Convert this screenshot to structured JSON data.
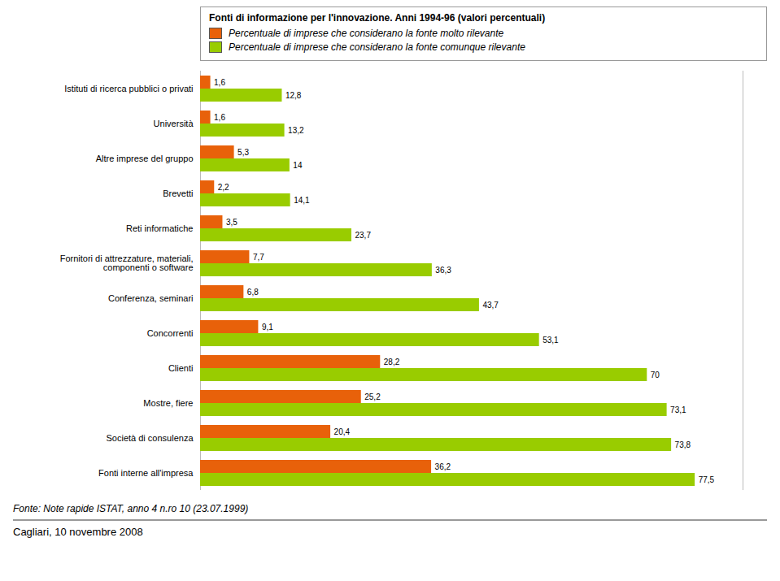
{
  "chart_data": {
    "type": "bar",
    "orientation": "horizontal",
    "title": "Fonti di informazione per l'innovazione. Anni 1994-96 (valori percentuali)",
    "categories": [
      "Istituti di ricerca pubblici o privati",
      "Università",
      "Altre imprese del gruppo",
      "Brevetti",
      "Reti informatiche",
      "Fornitori di attrezzature, materiali,\ncomponenti o software",
      "Conferenza, seminari",
      "Concorrenti",
      "Clienti",
      "Mostre, fiere",
      "Società di consulenza",
      "Fonti interne all'impresa"
    ],
    "series": [
      {
        "name": "Percentuale di imprese che considerano la fonte molto rilevante",
        "color": "#E8610A",
        "values": [
          1.6,
          1.6,
          5.3,
          2.2,
          3.5,
          7.7,
          6.8,
          9.1,
          28.2,
          25.2,
          20.4,
          36.2
        ],
        "value_labels": [
          "1,6",
          "1,6",
          "5,3",
          "2,2",
          "3,5",
          "7,7",
          "6,8",
          "9,1",
          "28,2",
          "25,2",
          "20,4",
          "36,2"
        ]
      },
      {
        "name": "Percentuale di imprese che considerano la fonte comunque rilevante",
        "color": "#99CC00",
        "values": [
          12.8,
          13.2,
          14.0,
          14.1,
          23.7,
          36.3,
          43.7,
          53.1,
          70.0,
          73.1,
          73.8,
          77.5
        ],
        "value_labels": [
          "12,8",
          "13,2",
          "14",
          "14,1",
          "23,7",
          "36,3",
          "43,7",
          "53,1",
          "70",
          "73,1",
          "73,8",
          "77,5"
        ]
      }
    ],
    "xlim": [
      0,
      85
    ],
    "tick_labels": "y",
    "data_labels": true,
    "grid": false,
    "legend": "top",
    "annotations": [
      "Fonte: Note rapide ISTAT, anno 4 n.ro 10 (23.07.1999)",
      "Cagliari, 10 novembre 2008"
    ]
  }
}
